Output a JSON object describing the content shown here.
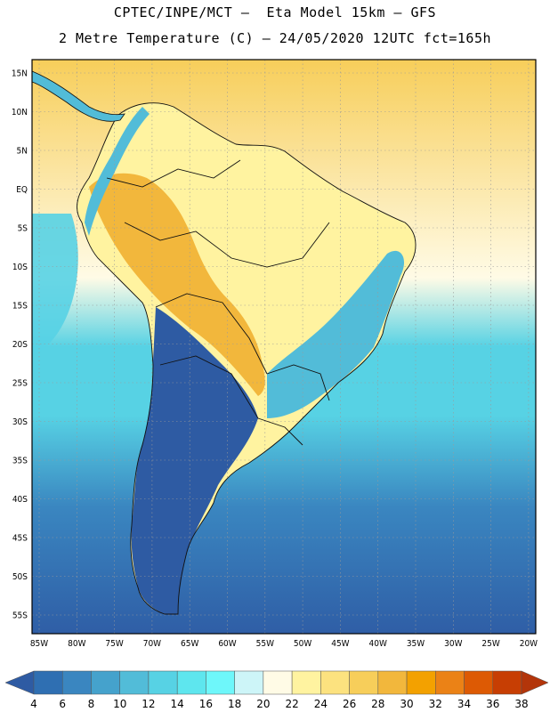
{
  "title": {
    "line1": "CPTEC/INPE/MCT –  Eta Model 15km – GFS",
    "line2": "2 Metre Temperature (C) – 24/05/2020 12UTC fct=165h"
  },
  "axes": {
    "lat_labels": [
      "15N",
      "10N",
      "5N",
      "EQ",
      "5S",
      "10S",
      "15S",
      "20S",
      "25S",
      "30S",
      "35S",
      "40S",
      "45S",
      "50S",
      "55S"
    ],
    "lon_labels": [
      "85W",
      "80W",
      "75W",
      "70W",
      "65W",
      "60W",
      "55W",
      "50W",
      "45W",
      "40W",
      "35W",
      "30W",
      "25W",
      "20W"
    ]
  },
  "legend": {
    "labels": [
      "4",
      "6",
      "8",
      "10",
      "12",
      "14",
      "16",
      "18",
      "20",
      "22",
      "24",
      "26",
      "28",
      "30",
      "32",
      "34",
      "36",
      "38"
    ],
    "colors": [
      "#2e5ba3",
      "#2f6fb2",
      "#3a86c0",
      "#45a2cc",
      "#52bcd8",
      "#57d2e4",
      "#5ee6ee",
      "#6ef7fa",
      "#cdf5f8",
      "#fffbe6",
      "#fff3a0",
      "#fce27f",
      "#f7ce5a",
      "#f2b73c",
      "#f3a100",
      "#eb8216",
      "#dd5a04",
      "#c73e03",
      "#b3350a"
    ]
  },
  "map_colors": {
    "ocean_far": "#2f5ea6",
    "ocean_mid": "#3a86c0",
    "ocean_near": "#57d2e4",
    "ocean_warm": "#fffbe6",
    "ocean_hot": "#f7ce5a",
    "land_hot": "#f2b73c",
    "land_warm": "#fce27f",
    "land_mild": "#fff3a0",
    "land_cool": "#52bcd8",
    "land_cold": "#2e5ba3"
  }
}
